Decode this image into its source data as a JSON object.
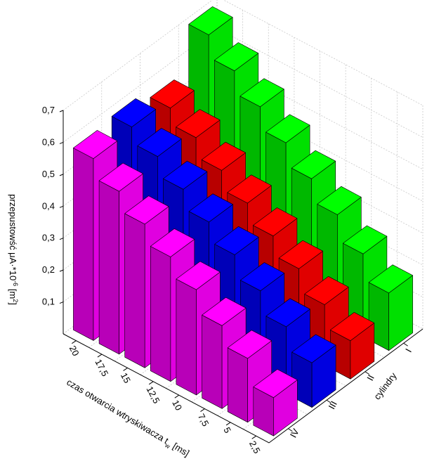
{
  "chart_data": {
    "type": "bar3d",
    "x_axis": {
      "label_prefix": "czas otwarcia wtryskiwacza t",
      "label_sub": "w",
      "label_suffix": " [ms]",
      "categories": [
        "20",
        "17,5",
        "15",
        "12,5",
        "10",
        "7,5",
        "5",
        "2,5"
      ],
      "values": [
        20,
        17.5,
        15,
        12.5,
        10,
        7.5,
        5,
        2.5
      ]
    },
    "y_axis": {
      "label": "cylindry",
      "categories": [
        "IV",
        "III",
        "II",
        "I"
      ]
    },
    "z_axis": {
      "label_prefix": "przepustowść μA·*10",
      "label_sup": "-6",
      "label_suffix": " [m",
      "label_sup2": "2",
      "label_end": "]",
      "range": [
        0,
        0.7
      ],
      "ticks": [
        "0,1",
        "0,2",
        "0,3",
        "0,4",
        "0,5",
        "0,6",
        "0,7"
      ],
      "tick_values": [
        0.1,
        0.2,
        0.3,
        0.4,
        0.5,
        0.6,
        0.7
      ]
    },
    "series": [
      {
        "name": "IV",
        "color": "#ff00ff",
        "values": [
          0.57,
          0.51,
          0.45,
          0.39,
          0.33,
          0.26,
          0.2,
          0.12
        ]
      },
      {
        "name": "III",
        "color": "#0000ff",
        "values": [
          0.58,
          0.53,
          0.47,
          0.41,
          0.35,
          0.28,
          0.21,
          0.14
        ]
      },
      {
        "name": "II",
        "color": "#ff0000",
        "values": [
          0.55,
          0.5,
          0.44,
          0.38,
          0.32,
          0.26,
          0.19,
          0.12
        ]
      },
      {
        "name": "I",
        "color": "#00ff00",
        "values": [
          0.69,
          0.62,
          0.55,
          0.48,
          0.41,
          0.34,
          0.26,
          0.18
        ]
      }
    ],
    "grid": true
  }
}
